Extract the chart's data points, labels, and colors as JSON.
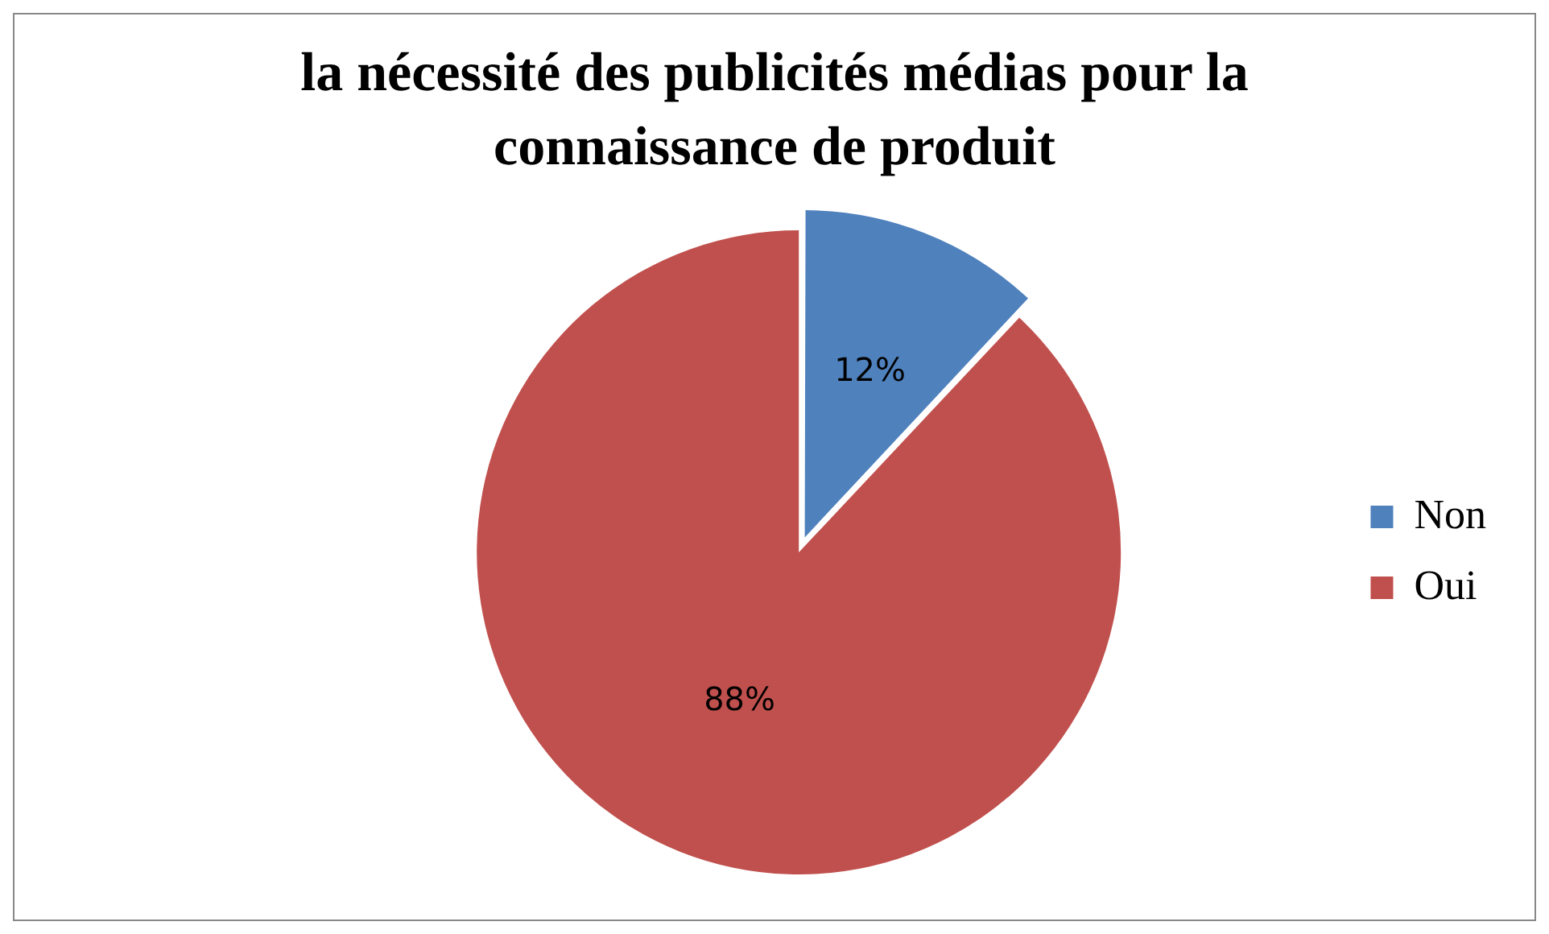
{
  "chart_data": {
    "type": "pie",
    "title": "la nécessité des publicités médias pour la connaissance de produit",
    "categories": [
      "Non",
      "Oui"
    ],
    "values": [
      12,
      88
    ],
    "colors": [
      "#4f81bd",
      "#c0504d"
    ],
    "value_labels": [
      "12%",
      "88%"
    ],
    "legend": "right"
  }
}
